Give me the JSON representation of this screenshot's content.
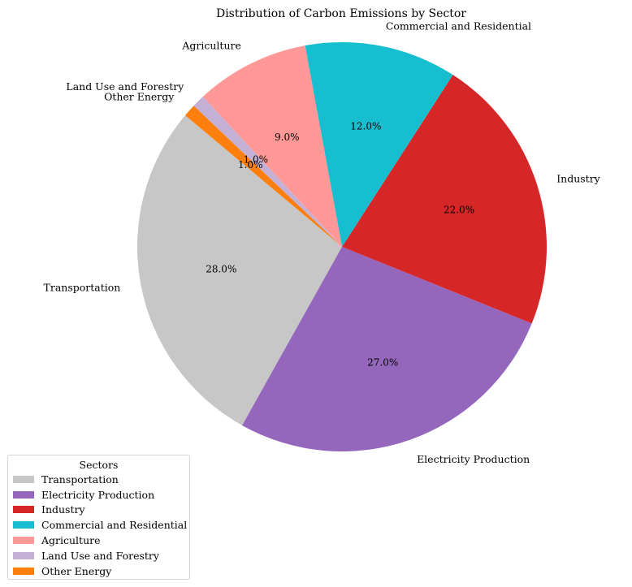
{
  "chart_data": {
    "type": "pie",
    "title": "Distribution of Carbon Emissions by Sector",
    "categories": [
      "Transportation",
      "Electricity Production",
      "Industry",
      "Commercial and Residential",
      "Agriculture",
      "Land Use and Forestry",
      "Other Energy"
    ],
    "values": [
      28,
      27,
      22,
      12,
      9,
      1,
      1
    ],
    "percent_labels": [
      "28.0%",
      "27.0%",
      "22.0%",
      "12.0%",
      "9.0%",
      "1.0%",
      "1.0%"
    ],
    "colors": [
      "#c7c7c7",
      "#9467bd",
      "#d62728",
      "#17becf",
      "#ff9896",
      "#c5b0d5",
      "#ff7f0e"
    ],
    "start_angle_deg": 140,
    "direction": "counterclockwise",
    "legend": {
      "title": "Sectors",
      "placement": "lower-left"
    }
  }
}
